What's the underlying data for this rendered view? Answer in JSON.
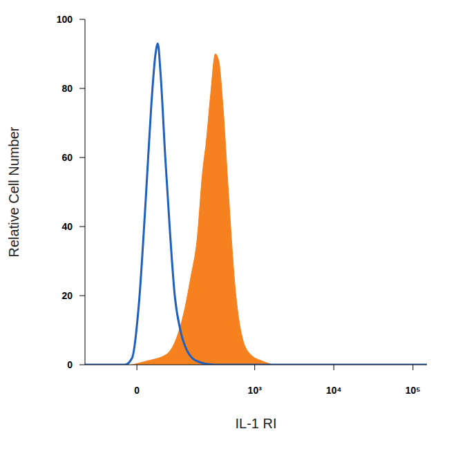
{
  "chart_data": {
    "type": "line",
    "xlabel": "IL-1 RI",
    "ylabel": "Relative Cell Number",
    "log": "x",
    "grid": false,
    "xlim": [
      -140,
      150000
    ],
    "xticks": [
      0,
      {
        "value": 1000,
        "label": "10³"
      },
      {
        "value": 10000,
        "label": "10⁴"
      },
      {
        "value": 100000,
        "label": "10⁵"
      }
    ],
    "ylim": [
      0,
      100
    ],
    "yticks": [
      0,
      20,
      40,
      60,
      80,
      100
    ],
    "series": [
      {
        "type": "area",
        "color": "#f5821f",
        "x": [
          -9,
          17,
          63,
          94,
          119,
          148,
          183,
          213,
          241,
          273,
          315,
          349,
          395,
          464,
          567,
          694,
          884,
          1268,
          1710
        ],
        "values": [
          0,
          1,
          3,
          8,
          15,
          25,
          37,
          55,
          65,
          78,
          90,
          88,
          75,
          50,
          22,
          8,
          3,
          1,
          0
        ]
      },
      {
        "type": "line",
        "color": "#1f5fbf",
        "x": [
          -140,
          -23,
          -9,
          4,
          17,
          28,
          37,
          42,
          48,
          60,
          73,
          87,
          106,
          133,
          183,
          309,
          150000
        ],
        "values": [
          0,
          0,
          2,
          18,
          48,
          75,
          90,
          93,
          85,
          60,
          38,
          20,
          10,
          4,
          1,
          0,
          0
        ]
      }
    ]
  }
}
